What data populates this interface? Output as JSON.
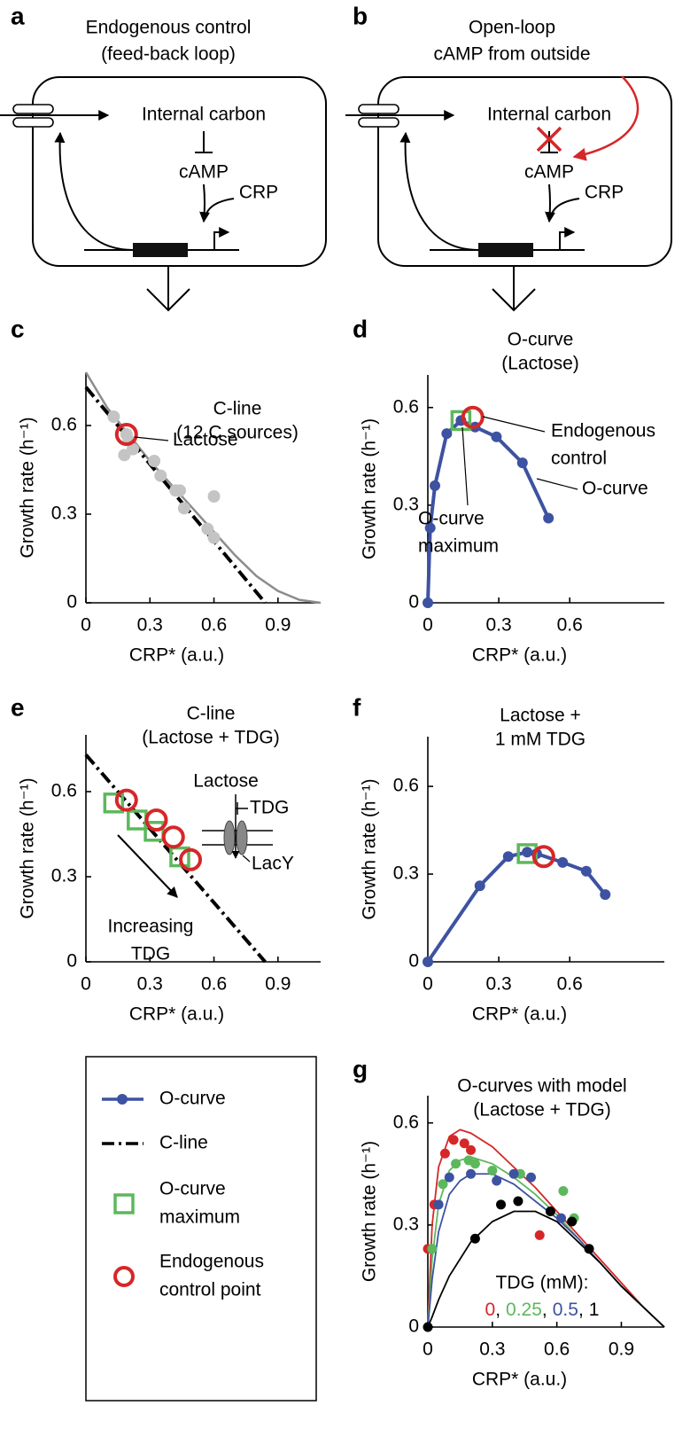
{
  "diagrams": [
    {
      "panel": "a",
      "title": [
        "Endogenous control",
        "(feed-back loop)"
      ],
      "carbon": "Internal carbon",
      "camp": "cAMP",
      "crp": "CRP"
    },
    {
      "panel": "b",
      "title": [
        "Open-loop",
        "cAMP from outside"
      ],
      "carbon": "Internal carbon",
      "camp": "cAMP",
      "crp": "CRP"
    }
  ],
  "legend": {
    "items": [
      {
        "lines": [
          "O-curve"
        ],
        "kind": "line-dot",
        "color": "#3d52a1"
      },
      {
        "lines": [
          "C-line"
        ],
        "kind": "dashdot",
        "color": "#000000"
      },
      {
        "lines": [
          "O-curve",
          "maximum"
        ],
        "kind": "square",
        "color": "#5cb85c"
      },
      {
        "lines": [
          "Endogenous",
          "control point"
        ],
        "kind": "circle",
        "color": "#d62728"
      }
    ]
  },
  "chart_data": [
    {
      "type": "scatter",
      "panel": "c",
      "title": [
        "C-line",
        "(12 C sources)"
      ],
      "x_label": "CRP* (a.u.)",
      "y_label": "Growth rate (h⁻¹)",
      "xlim": [
        0,
        1.1
      ],
      "ylim": [
        0,
        0.78
      ],
      "xticks": [
        0,
        0.3,
        0.6,
        0.9
      ],
      "yticks": [
        0,
        0.3,
        0.6
      ],
      "series": [
        {
          "style": "line",
          "color": "#8c8c8c",
          "x": [
            0,
            0.1,
            0.2,
            0.3,
            0.4,
            0.5,
            0.6,
            0.7,
            0.8,
            0.9,
            1.0,
            1.1
          ],
          "values": [
            0.78,
            0.66,
            0.57,
            0.48,
            0.4,
            0.32,
            0.24,
            0.16,
            0.09,
            0.04,
            0.01,
            0
          ]
        },
        {
          "style": "dashdot",
          "color": "#000000",
          "x": [
            0,
            0.84
          ],
          "values": [
            0.73,
            0
          ]
        },
        {
          "style": "points",
          "color": "#c4c4c4",
          "x": [
            0.13,
            0.19,
            0.2,
            0.18,
            0.22,
            0.32,
            0.35,
            0.42,
            0.44,
            0.46,
            0.57,
            0.6,
            0.6
          ],
          "values": [
            0.63,
            0.57,
            0.55,
            0.5,
            0.52,
            0.48,
            0.43,
            0.38,
            0.38,
            0.32,
            0.25,
            0.22,
            0.36
          ]
        }
      ],
      "highlights": [
        {
          "shape": "circle",
          "color": "#d62728",
          "x": 0.19,
          "y": 0.57
        }
      ],
      "annotations": [
        {
          "text": [
            "Lactose"
          ]
        }
      ]
    },
    {
      "type": "line",
      "panel": "d",
      "title": [
        "O-curve",
        "(Lactose)"
      ],
      "x_label": "CRP* (a.u.)",
      "y_label": "Growth rate (h⁻¹)",
      "xlim": [
        0,
        1.0
      ],
      "ylim": [
        0,
        0.7
      ],
      "xticks": [
        0,
        0.3,
        0.6
      ],
      "yticks": [
        0,
        0.3,
        0.6
      ],
      "series": [
        {
          "style": "line-dots",
          "color": "#3d52a1",
          "x": [
            0,
            0.01,
            0.03,
            0.08,
            0.14,
            0.2,
            0.29,
            0.4,
            0.51
          ],
          "values": [
            0,
            0.23,
            0.36,
            0.52,
            0.56,
            0.54,
            0.51,
            0.43,
            0.26
          ]
        }
      ],
      "highlights": [
        {
          "shape": "square",
          "color": "#5cb85c",
          "x": 0.14,
          "y": 0.56
        },
        {
          "shape": "circle",
          "color": "#d62728",
          "x": 0.19,
          "y": 0.57
        }
      ],
      "annotations": [
        {
          "text": [
            "Endogenous",
            "control"
          ]
        },
        {
          "text": [
            "O-curve"
          ]
        },
        {
          "text": [
            "O-curve",
            "maximum"
          ]
        }
      ]
    },
    {
      "type": "scatter",
      "panel": "e",
      "title": [
        "C-line",
        "(Lactose + TDG)"
      ],
      "x_label": "CRP* (a.u.)",
      "y_label": "Growth rate (h⁻¹)",
      "xlim": [
        0,
        1.1
      ],
      "ylim": [
        0,
        0.8
      ],
      "xticks": [
        0,
        0.3,
        0.6,
        0.9
      ],
      "yticks": [
        0,
        0.3,
        0.6
      ],
      "series": [
        {
          "style": "dashdot",
          "color": "#000000",
          "x": [
            0,
            0.84
          ],
          "values": [
            0.73,
            0
          ]
        }
      ],
      "highlights": [
        {
          "shape": "square",
          "color": "#5cb85c",
          "x": 0.13,
          "y": 0.56
        },
        {
          "shape": "square",
          "color": "#5cb85c",
          "x": 0.24,
          "y": 0.5
        },
        {
          "shape": "square",
          "color": "#5cb85c",
          "x": 0.32,
          "y": 0.46
        },
        {
          "shape": "square",
          "color": "#5cb85c",
          "x": 0.44,
          "y": 0.37
        },
        {
          "shape": "circle",
          "color": "#d62728",
          "x": 0.19,
          "y": 0.57
        },
        {
          "shape": "circle",
          "color": "#d62728",
          "x": 0.33,
          "y": 0.5
        },
        {
          "shape": "circle",
          "color": "#d62728",
          "x": 0.41,
          "y": 0.44
        },
        {
          "shape": "circle",
          "color": "#d62728",
          "x": 0.49,
          "y": 0.36
        }
      ],
      "annotations": [
        {
          "text": [
            "Increasing",
            "TDG"
          ]
        },
        {
          "text": [
            "Lactose"
          ]
        },
        {
          "text": [
            "TDG"
          ]
        },
        {
          "text": [
            "LacY"
          ]
        }
      ]
    },
    {
      "type": "line",
      "panel": "f",
      "title": [
        "Lactose +",
        "1 mM TDG"
      ],
      "x_label": "CRP* (a.u.)",
      "y_label": "Growth rate (h⁻¹)",
      "xlim": [
        0,
        1.0
      ],
      "ylim": [
        0,
        0.77
      ],
      "xticks": [
        0,
        0.3,
        0.6
      ],
      "yticks": [
        0,
        0.3,
        0.6
      ],
      "series": [
        {
          "style": "line-dots",
          "color": "#3d52a1",
          "x": [
            0,
            0.22,
            0.34,
            0.42,
            0.46,
            0.57,
            0.67,
            0.75
          ],
          "values": [
            0,
            0.26,
            0.36,
            0.375,
            0.37,
            0.34,
            0.31,
            0.23
          ]
        }
      ],
      "highlights": [
        {
          "shape": "square",
          "color": "#5cb85c",
          "x": 0.42,
          "y": 0.37
        },
        {
          "shape": "circle",
          "color": "#d62728",
          "x": 0.49,
          "y": 0.36
        }
      ],
      "annotations": []
    },
    {
      "type": "line",
      "panel": "g",
      "title": [
        "O-curves with model",
        "(Lactose + TDG)"
      ],
      "x_label": "CRP* (a.u.)",
      "y_label": "Growth rate (h⁻¹)",
      "xlim": [
        0,
        1.1
      ],
      "ylim": [
        0,
        0.68
      ],
      "xticks": [
        0,
        0.3,
        0.6,
        0.9
      ],
      "yticks": [
        0,
        0.3,
        0.6
      ],
      "legend_title": "TDG (mM):",
      "legend_separator": ",",
      "model_x": [
        0,
        0.02,
        0.05,
        0.1,
        0.15,
        0.2,
        0.3,
        0.4,
        0.5,
        0.6,
        0.7,
        0.8,
        0.9,
        1.0,
        1.1
      ],
      "series": [
        {
          "name": "0",
          "style": "points",
          "color": "#d62728",
          "x": [
            0,
            0.03,
            0.08,
            0.12,
            0.17,
            0.2,
            0.52
          ],
          "values": [
            0.23,
            0.36,
            0.51,
            0.55,
            0.54,
            0.52,
            0.27
          ],
          "model_values": [
            0,
            0.3,
            0.47,
            0.56,
            0.58,
            0.57,
            0.53,
            0.47,
            0.41,
            0.34,
            0.27,
            0.2,
            0.13,
            0.06,
            0
          ]
        },
        {
          "name": "0.25",
          "style": "points",
          "color": "#5cb85c",
          "x": [
            0.02,
            0.07,
            0.13,
            0.19,
            0.22,
            0.3,
            0.43,
            0.63,
            0.68
          ],
          "values": [
            0.23,
            0.42,
            0.48,
            0.49,
            0.48,
            0.46,
            0.45,
            0.4,
            0.32
          ],
          "model_values": [
            0,
            0.2,
            0.36,
            0.46,
            0.49,
            0.5,
            0.48,
            0.44,
            0.39,
            0.33,
            0.26,
            0.19,
            0.12,
            0.06,
            0
          ]
        },
        {
          "name": "0.5",
          "style": "points",
          "color": "#3d52a1",
          "x": [
            0.05,
            0.1,
            0.2,
            0.32,
            0.4,
            0.48,
            0.62
          ],
          "values": [
            0.36,
            0.44,
            0.45,
            0.43,
            0.45,
            0.44,
            0.32
          ],
          "model_values": [
            0,
            0.14,
            0.28,
            0.39,
            0.43,
            0.45,
            0.45,
            0.42,
            0.37,
            0.32,
            0.26,
            0.19,
            0.12,
            0.06,
            0
          ]
        },
        {
          "name": "1",
          "style": "points",
          "color": "#000000",
          "x": [
            0,
            0.22,
            0.34,
            0.42,
            0.57,
            0.67,
            0.75
          ],
          "values": [
            0,
            0.26,
            0.36,
            0.37,
            0.34,
            0.31,
            0.23
          ],
          "model_values": [
            0,
            0.03,
            0.08,
            0.15,
            0.2,
            0.25,
            0.31,
            0.34,
            0.34,
            0.31,
            0.25,
            0.19,
            0.12,
            0.06,
            0
          ]
        }
      ],
      "highlights": [],
      "annotations": []
    }
  ]
}
